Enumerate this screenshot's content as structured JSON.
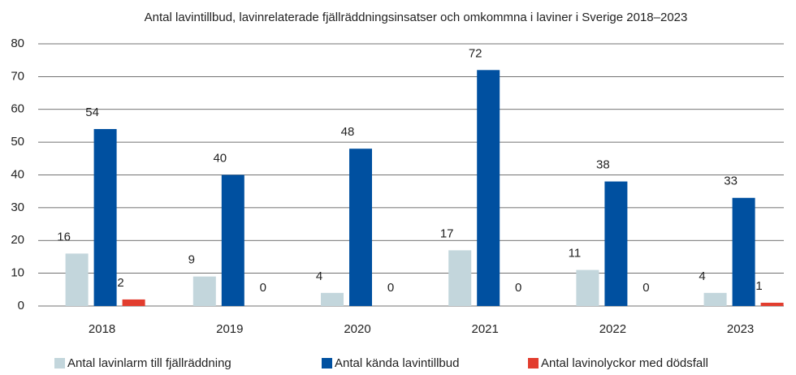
{
  "chart_data": {
    "type": "bar",
    "title": "Antal lavintillbud, lavinrelaterade fjällräddningsinsatser och omkommna i laviner i Sverige 2018–2023",
    "categories": [
      "2018",
      "2019",
      "2020",
      "2021",
      "2022",
      "2023"
    ],
    "series": [
      {
        "name": "Antal lavinlarm till fjällräddning",
        "color": "#c3d6dc",
        "values": [
          16,
          9,
          4,
          17,
          11,
          4
        ]
      },
      {
        "name": "Antal kända lavintillbud",
        "color": "#0050a0",
        "values": [
          54,
          40,
          48,
          72,
          38,
          33
        ]
      },
      {
        "name": "Antal lavinolyckor med dödsfall",
        "color": "#e23d2e",
        "values": [
          2,
          0,
          0,
          0,
          0,
          1
        ]
      }
    ],
    "ylim": [
      0,
      80
    ],
    "yticks": [
      0,
      10,
      20,
      30,
      40,
      50,
      60,
      70,
      80
    ],
    "grid": true,
    "legend": "bottom"
  }
}
